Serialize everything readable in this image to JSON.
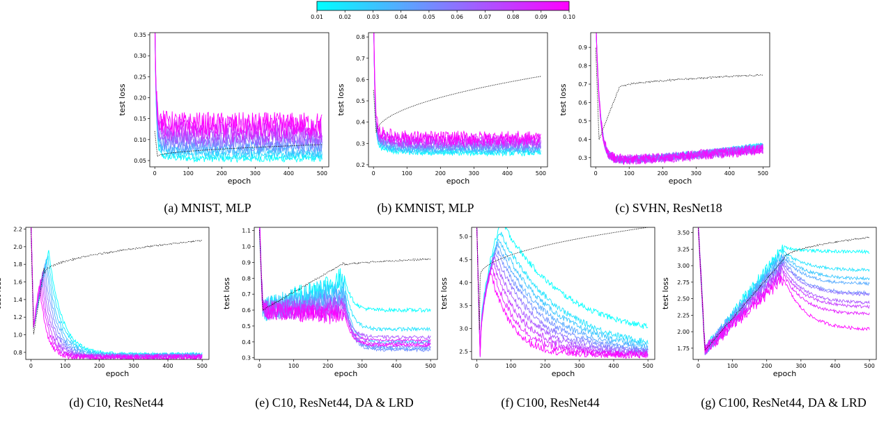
{
  "colorbar": {
    "min": 0.01,
    "max": 0.1,
    "ticks": [
      "0.01",
      "0.02",
      "0.03",
      "0.04",
      "0.05",
      "0.06",
      "0.07",
      "0.08",
      "0.09",
      "0.10"
    ],
    "color_low": "#00ffff",
    "color_high": "#ff00ff"
  },
  "line_colors": [
    "#00ffff",
    "#1ce3ff",
    "#39c6ff",
    "#55aaff",
    "#718eff",
    "#8e71ff",
    "#aa55ff",
    "#c639ff",
    "#e31cff",
    "#ff00ff"
  ],
  "reference_color": "#000000",
  "chart_data": [
    {
      "id": "a",
      "type": "line",
      "caption": "(a) MNIST, MLP",
      "xlabel": "epoch",
      "ylabel": "test loss",
      "xlim": [
        -15,
        520
      ],
      "ylim": [
        0.035,
        0.355
      ],
      "xticks": [
        "0",
        "100",
        "200",
        "300",
        "400",
        "500"
      ],
      "yticks": [
        "0.05",
        "0.10",
        "0.15",
        "0.20",
        "0.25",
        "0.30",
        "0.35"
      ],
      "series": [
        {
          "lr": 0.01,
          "final": 0.055,
          "noise": 0.004
        },
        {
          "lr": 0.02,
          "final": 0.063,
          "noise": 0.005
        },
        {
          "lr": 0.03,
          "final": 0.071,
          "noise": 0.006
        },
        {
          "lr": 0.04,
          "final": 0.08,
          "noise": 0.007
        },
        {
          "lr": 0.05,
          "final": 0.089,
          "noise": 0.008
        },
        {
          "lr": 0.06,
          "final": 0.098,
          "noise": 0.009
        },
        {
          "lr": 0.07,
          "final": 0.108,
          "noise": 0.01
        },
        {
          "lr": 0.08,
          "final": 0.118,
          "noise": 0.011
        },
        {
          "lr": 0.09,
          "final": 0.128,
          "noise": 0.012
        },
        {
          "lr": 0.1,
          "final": 0.137,
          "noise": 0.013
        }
      ],
      "reference": {
        "start": 0.06,
        "final": 0.088
      }
    },
    {
      "id": "b",
      "type": "line",
      "caption": "(b) KMNIST, MLP",
      "xlabel": "epoch",
      "ylabel": "test loss",
      "xlim": [
        -15,
        520
      ],
      "ylim": [
        0.19,
        0.82
      ],
      "xticks": [
        "0",
        "100",
        "200",
        "300",
        "400",
        "500"
      ],
      "yticks": [
        "0.2",
        "0.3",
        "0.4",
        "0.5",
        "0.6",
        "0.7",
        "0.8"
      ],
      "series": [
        {
          "lr": 0.01,
          "final": 0.255,
          "noise": 0.006
        },
        {
          "lr": 0.02,
          "final": 0.262,
          "noise": 0.007
        },
        {
          "lr": 0.03,
          "final": 0.27,
          "noise": 0.008
        },
        {
          "lr": 0.04,
          "final": 0.278,
          "noise": 0.009
        },
        {
          "lr": 0.05,
          "final": 0.286,
          "noise": 0.01
        },
        {
          "lr": 0.06,
          "final": 0.294,
          "noise": 0.011
        },
        {
          "lr": 0.07,
          "final": 0.302,
          "noise": 0.012
        },
        {
          "lr": 0.08,
          "final": 0.31,
          "noise": 0.013
        },
        {
          "lr": 0.09,
          "final": 0.318,
          "noise": 0.014
        },
        {
          "lr": 0.1,
          "final": 0.326,
          "noise": 0.015
        }
      ],
      "reference": {
        "start": 0.4,
        "final": 0.615
      }
    },
    {
      "id": "c",
      "type": "line",
      "caption": "(c) SVHN, ResNet18",
      "xlabel": "epoch",
      "ylabel": "test loss",
      "xlim": [
        -15,
        520
      ],
      "ylim": [
        0.25,
        0.98
      ],
      "xticks": [
        "0",
        "100",
        "200",
        "300",
        "400",
        "500"
      ],
      "yticks": [
        "0.3",
        "0.4",
        "0.5",
        "0.6",
        "0.7",
        "0.8",
        "0.9"
      ],
      "series": [
        {
          "lr": 0.01,
          "min": 0.29,
          "final": 0.37,
          "noise": 0.01
        },
        {
          "lr": 0.02,
          "min": 0.29,
          "final": 0.365,
          "noise": 0.011
        },
        {
          "lr": 0.03,
          "min": 0.29,
          "final": 0.362,
          "noise": 0.012
        },
        {
          "lr": 0.04,
          "min": 0.29,
          "final": 0.358,
          "noise": 0.013
        },
        {
          "lr": 0.05,
          "min": 0.29,
          "final": 0.355,
          "noise": 0.014
        },
        {
          "lr": 0.06,
          "min": 0.29,
          "final": 0.352,
          "noise": 0.015
        },
        {
          "lr": 0.07,
          "min": 0.29,
          "final": 0.35,
          "noise": 0.016
        },
        {
          "lr": 0.08,
          "min": 0.29,
          "final": 0.348,
          "noise": 0.017
        },
        {
          "lr": 0.09,
          "min": 0.29,
          "final": 0.346,
          "noise": 0.018
        },
        {
          "lr": 0.1,
          "min": 0.29,
          "final": 0.345,
          "noise": 0.019
        }
      ],
      "reference": {
        "start": 0.55,
        "final": 0.75
      }
    },
    {
      "id": "d",
      "type": "line",
      "caption": "(d) C10, ResNet44",
      "xlabel": "epoch",
      "ylabel": "test loss",
      "xlim": [
        -15,
        520
      ],
      "ylim": [
        0.72,
        2.22
      ],
      "xticks": [
        "0",
        "100",
        "200",
        "300",
        "400",
        "500"
      ],
      "yticks": [
        "0.8",
        "1.0",
        "1.2",
        "1.4",
        "1.6",
        "1.8",
        "2.0",
        "2.2"
      ],
      "series": [
        {
          "lr": 0.01,
          "final": 0.78,
          "noise": 0.012
        },
        {
          "lr": 0.02,
          "final": 0.775,
          "noise": 0.013
        },
        {
          "lr": 0.03,
          "final": 0.77,
          "noise": 0.014
        },
        {
          "lr": 0.04,
          "final": 0.765,
          "noise": 0.015
        },
        {
          "lr": 0.05,
          "final": 0.76,
          "noise": 0.016
        },
        {
          "lr": 0.06,
          "final": 0.757,
          "noise": 0.017
        },
        {
          "lr": 0.07,
          "final": 0.754,
          "noise": 0.018
        },
        {
          "lr": 0.08,
          "final": 0.75,
          "noise": 0.019
        },
        {
          "lr": 0.09,
          "final": 0.748,
          "noise": 0.02
        },
        {
          "lr": 0.1,
          "final": 0.745,
          "noise": 0.021
        }
      ],
      "reference": {
        "start": 1.7,
        "final": 2.07
      }
    },
    {
      "id": "e",
      "type": "line",
      "caption": "(e) C10, ResNet44, DA & LRD",
      "xlabel": "epoch",
      "ylabel": "test loss",
      "xlim": [
        -15,
        520
      ],
      "ylim": [
        0.29,
        1.12
      ],
      "xticks": [
        "0",
        "100",
        "200",
        "300",
        "400",
        "500"
      ],
      "yticks": [
        "0.3",
        "0.4",
        "0.5",
        "0.6",
        "0.7",
        "0.8",
        "0.9",
        "1.0",
        "1.1"
      ],
      "series": [
        {
          "lr": 0.01,
          "peak": 0.8,
          "final": 0.6,
          "noise": 0.05
        },
        {
          "lr": 0.02,
          "peak": 0.76,
          "final": 0.48,
          "noise": 0.05
        },
        {
          "lr": 0.03,
          "peak": 0.72,
          "final": 0.4,
          "noise": 0.05
        },
        {
          "lr": 0.04,
          "peak": 0.69,
          "final": 0.36,
          "noise": 0.045
        },
        {
          "lr": 0.05,
          "peak": 0.66,
          "final": 0.35,
          "noise": 0.045
        },
        {
          "lr": 0.06,
          "peak": 0.64,
          "final": 0.37,
          "noise": 0.04
        },
        {
          "lr": 0.07,
          "peak": 0.62,
          "final": 0.43,
          "noise": 0.04
        },
        {
          "lr": 0.08,
          "peak": 0.6,
          "final": 0.39,
          "noise": 0.04
        },
        {
          "lr": 0.09,
          "peak": 0.58,
          "final": 0.41,
          "noise": 0.035
        },
        {
          "lr": 0.1,
          "peak": 0.56,
          "final": 0.38,
          "noise": 0.035
        }
      ],
      "reference": {
        "start": 0.7,
        "final": 0.92
      }
    },
    {
      "id": "f",
      "type": "line",
      "caption": "(f) C100, ResNet44",
      "xlabel": "epoch",
      "ylabel": "test loss",
      "xlim": [
        -15,
        520
      ],
      "ylim": [
        2.33,
        5.2
      ],
      "xticks": [
        "0",
        "100",
        "200",
        "300",
        "400",
        "500"
      ],
      "yticks": [
        "2.5",
        "3.0",
        "3.5",
        "4.0",
        "4.5",
        "5.0"
      ],
      "series": [
        {
          "lr": 0.01,
          "peak": 5.35,
          "final": 2.78,
          "noise": 0.04
        },
        {
          "lr": 0.02,
          "peak": 5.1,
          "final": 2.5,
          "noise": 0.04
        },
        {
          "lr": 0.03,
          "peak": 4.95,
          "final": 2.48,
          "noise": 0.04
        },
        {
          "lr": 0.04,
          "peak": 4.85,
          "final": 2.46,
          "noise": 0.04
        },
        {
          "lr": 0.05,
          "peak": 4.75,
          "final": 2.45,
          "noise": 0.04
        },
        {
          "lr": 0.06,
          "peak": 4.65,
          "final": 2.45,
          "noise": 0.045
        },
        {
          "lr": 0.07,
          "peak": 4.55,
          "final": 2.44,
          "noise": 0.045
        },
        {
          "lr": 0.08,
          "peak": 4.45,
          "final": 2.44,
          "noise": 0.05
        },
        {
          "lr": 0.09,
          "peak": 4.35,
          "final": 2.43,
          "noise": 0.05
        },
        {
          "lr": 0.1,
          "peak": 4.25,
          "final": 2.43,
          "noise": 0.05
        }
      ],
      "reference": {
        "start": 4.2,
        "final": 5.2
      }
    },
    {
      "id": "g",
      "type": "line",
      "caption": "(g) C100, ResNet44, DA & LRD",
      "xlabel": "epoch",
      "ylabel": "test loss",
      "xlim": [
        -15,
        520
      ],
      "ylim": [
        1.58,
        3.58
      ],
      "xticks": [
        "0",
        "100",
        "200",
        "300",
        "400",
        "500"
      ],
      "yticks": [
        "1.75",
        "2.00",
        "2.25",
        "2.50",
        "2.75",
        "3.00",
        "3.25",
        "3.50"
      ],
      "series": [
        {
          "lr": 0.01,
          "peak": 3.28,
          "final": 3.21,
          "noise": 0.06
        },
        {
          "lr": 0.02,
          "peak": 3.22,
          "final": 2.93,
          "noise": 0.06
        },
        {
          "lr": 0.03,
          "peak": 3.18,
          "final": 2.8,
          "noise": 0.06
        },
        {
          "lr": 0.04,
          "peak": 3.13,
          "final": 2.72,
          "noise": 0.06
        },
        {
          "lr": 0.05,
          "peak": 3.08,
          "final": 2.58,
          "noise": 0.06
        },
        {
          "lr": 0.06,
          "peak": 3.03,
          "final": 2.56,
          "noise": 0.06
        },
        {
          "lr": 0.07,
          "peak": 2.98,
          "final": 2.43,
          "noise": 0.06
        },
        {
          "lr": 0.08,
          "peak": 2.92,
          "final": 2.37,
          "noise": 0.06
        },
        {
          "lr": 0.09,
          "peak": 2.86,
          "final": 2.26,
          "noise": 0.06
        },
        {
          "lr": 0.1,
          "peak": 2.8,
          "final": 2.03,
          "noise": 0.06
        }
      ],
      "reference": {
        "start": 3.1,
        "final": 3.43
      }
    }
  ]
}
